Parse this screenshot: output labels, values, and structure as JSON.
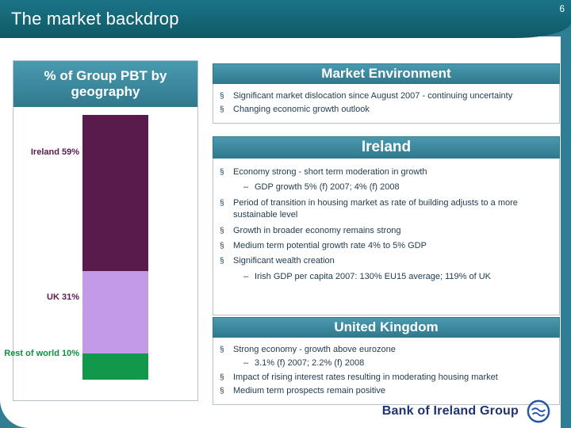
{
  "page": {
    "title": "The market backdrop",
    "number": "6"
  },
  "glyphs": {
    "bullet": "§",
    "dash": "–"
  },
  "theme": {
    "header_bg": "#0f5967",
    "header_bg_light": "#1b7486",
    "band_bg": "#30798d",
    "band_light": "#4a9ab0",
    "strip": "#2f7e93",
    "box_border": "#b3c2c9",
    "text": "#1f3a4d",
    "logo_text": "#1f3372",
    "logo_blue": "#2456a8"
  },
  "left_panel": {
    "header": "% of Group PBT by geography"
  },
  "chart_data": {
    "type": "bar",
    "stacked": true,
    "title": "% of Group PBT by geography",
    "categories": [
      "Ireland",
      "UK",
      "Rest of world"
    ],
    "values": [
      59,
      31,
      10
    ],
    "unit": "% of Group PBT",
    "axis": "none",
    "legend_position": "left of bar",
    "segments": [
      {
        "category": "Ireland",
        "value": 59,
        "label": "Ireland 59%",
        "color": "#591a4c",
        "label_color": "#591a4c",
        "label_top_pct": 14
      },
      {
        "category": "UK",
        "value": 31,
        "label": "UK 31%",
        "color": "#c39ae6",
        "label_color": "#591a4c",
        "label_top_pct": 69
      },
      {
        "category": "Rest of world",
        "value": 10,
        "label": "Rest of world 10%",
        "color": "#12984a",
        "label_color": "#0f8f3f",
        "label_top_pct": 90
      }
    ]
  },
  "sections": [
    {
      "title": "Market Environment",
      "bullets": [
        {
          "text": "Significant market dislocation since August 2007 - continuing uncertainty"
        },
        {
          "text": "Changing economic growth outlook"
        }
      ]
    },
    {
      "title": "Ireland",
      "bullets": [
        {
          "text": "Economy strong - short term moderation in growth",
          "sub": [
            "GDP growth 5% (f) 2007; 4% (f) 2008"
          ]
        },
        {
          "text": "Period of transition in housing market as rate of building adjusts to a more sustainable level"
        },
        {
          "text": "Growth in broader economy remains strong"
        },
        {
          "text": "Medium term potential growth rate 4% to 5% GDP"
        },
        {
          "text": "Significant wealth creation",
          "sub": [
            "Irish GDP per capita 2007: 130% EU15 average; 119% of UK"
          ]
        }
      ]
    },
    {
      "title": "United Kingdom",
      "bullets": [
        {
          "text": "Strong economy - growth above eurozone",
          "sub": [
            "3.1% (f) 2007; 2.2% (f) 2008"
          ]
        },
        {
          "text": "Impact of rising interest rates resulting in moderating housing market"
        },
        {
          "text": "Medium term prospects remain positive"
        }
      ]
    }
  ],
  "footer": {
    "brand": "Bank of Ireland Group"
  }
}
